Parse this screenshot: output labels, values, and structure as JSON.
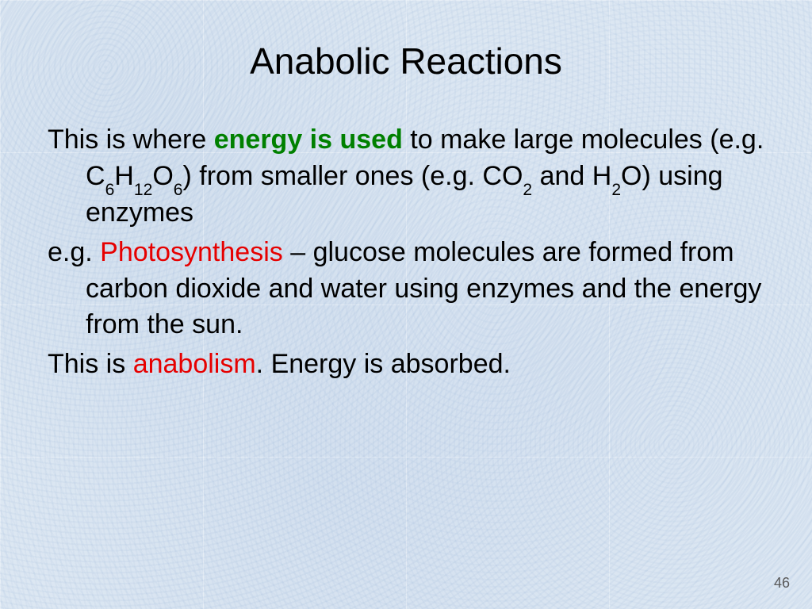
{
  "slide": {
    "title": "Anabolic Reactions",
    "page_number": "46",
    "background_color": "#dce7f2",
    "grid_color": "rgba(255,255,255,0.35)",
    "title_fontsize": 46,
    "body_fontsize": 34,
    "text_color": "#000000",
    "highlight_green": "#008000",
    "highlight_red": "#e60000"
  },
  "p1": {
    "t1": "This is where ",
    "hl": "energy is used",
    "t2": " to make large molecules (e.g. C",
    "s1": "6",
    "t3": "H",
    "s2": "12",
    "t4": "O",
    "s3": "6",
    "t5": ") from smaller ones (e.g. CO",
    "s4": "2",
    "t6": " and H",
    "s5": "2",
    "t7": "O) using enzymes"
  },
  "p2": {
    "t1": "e.g. ",
    "hl": "Photosynthesis",
    "t2": " – glucose molecules are formed from carbon dioxide and water using enzymes and the energy from the sun."
  },
  "p3": {
    "t1": "This is ",
    "hl": "anabolism",
    "t2": ". Energy is absorbed."
  }
}
